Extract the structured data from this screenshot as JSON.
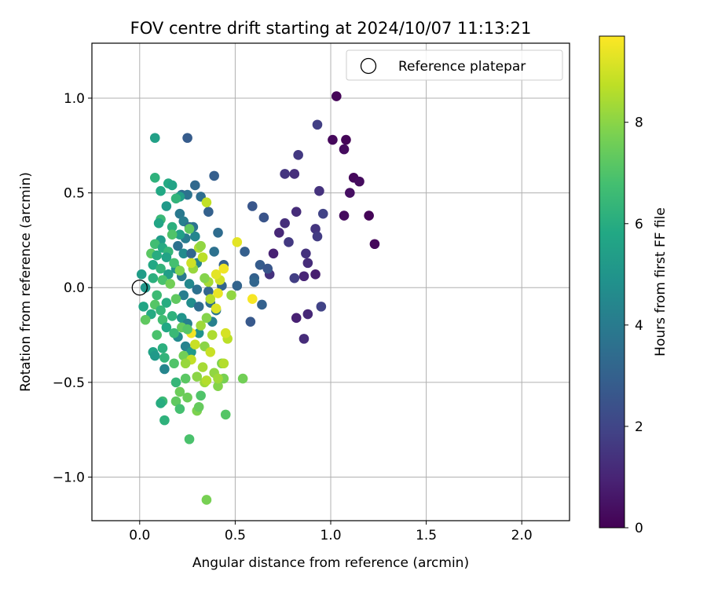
{
  "chart_data": {
    "type": "scatter",
    "title": "FOV centre drift starting at 2024/10/07 11:13:21",
    "xlabel": "Angular distance from reference (arcmin)",
    "ylabel": "Rotation from reference (arcmin)",
    "xlim": [
      -0.25,
      2.25
    ],
    "ylim": [
      -1.23,
      1.29
    ],
    "xticks": [
      0.0,
      0.5,
      1.0,
      1.5,
      2.0
    ],
    "xtick_labels": [
      "0.0",
      "0.5",
      "1.0",
      "1.5",
      "2.0"
    ],
    "yticks": [
      -1.0,
      -0.5,
      0.0,
      0.5,
      1.0
    ],
    "ytick_labels": [
      "−1.0",
      "−0.5",
      "0.0",
      "0.5",
      "1.0"
    ],
    "grid": true,
    "legend": {
      "position": "upper right",
      "entries": [
        "Reference platepar"
      ]
    },
    "reference": {
      "x": 0.0,
      "y": 0.0,
      "label": "Reference platepar"
    },
    "colorbar": {
      "label": "Hours from first FF file",
      "colormap": "viridis",
      "range": [
        0,
        9.7
      ],
      "ticks": [
        0,
        2,
        4,
        6,
        8
      ],
      "tick_labels": [
        "0",
        "2",
        "4",
        "6",
        "8"
      ]
    },
    "points": [
      {
        "x": 1.03,
        "y": 1.01,
        "h": 0.1
      },
      {
        "x": 1.01,
        "y": 0.78,
        "h": 0.2
      },
      {
        "x": 1.08,
        "y": 0.78,
        "h": 0.1
      },
      {
        "x": 1.07,
        "y": 0.73,
        "h": 0.3
      },
      {
        "x": 1.12,
        "y": 0.58,
        "h": 0.2
      },
      {
        "x": 1.15,
        "y": 0.56,
        "h": 0.3
      },
      {
        "x": 1.1,
        "y": 0.5,
        "h": 0.4
      },
      {
        "x": 1.07,
        "y": 0.38,
        "h": 0.3
      },
      {
        "x": 1.2,
        "y": 0.38,
        "h": 0.1
      },
      {
        "x": 1.23,
        "y": 0.23,
        "h": 0.2
      },
      {
        "x": 0.93,
        "y": 0.86,
        "h": 1.8
      },
      {
        "x": 0.83,
        "y": 0.7,
        "h": 1.6
      },
      {
        "x": 0.76,
        "y": 0.6,
        "h": 1.5
      },
      {
        "x": 0.81,
        "y": 0.6,
        "h": 1.3
      },
      {
        "x": 0.94,
        "y": 0.51,
        "h": 1.4
      },
      {
        "x": 0.96,
        "y": 0.39,
        "h": 1.9
      },
      {
        "x": 0.82,
        "y": 0.4,
        "h": 1.2
      },
      {
        "x": 0.73,
        "y": 0.29,
        "h": 1.1
      },
      {
        "x": 0.76,
        "y": 0.34,
        "h": 1.3
      },
      {
        "x": 0.78,
        "y": 0.24,
        "h": 1.6
      },
      {
        "x": 0.92,
        "y": 0.31,
        "h": 1.5
      },
      {
        "x": 0.93,
        "y": 0.27,
        "h": 1.7
      },
      {
        "x": 0.87,
        "y": 0.18,
        "h": 1.4
      },
      {
        "x": 0.88,
        "y": 0.13,
        "h": 1.2
      },
      {
        "x": 0.7,
        "y": 0.18,
        "h": 0.9
      },
      {
        "x": 0.68,
        "y": 0.07,
        "h": 1.4
      },
      {
        "x": 0.86,
        "y": 0.06,
        "h": 1.0
      },
      {
        "x": 0.92,
        "y": 0.07,
        "h": 0.8
      },
      {
        "x": 0.81,
        "y": 0.05,
        "h": 1.8
      },
      {
        "x": 0.82,
        "y": -0.16,
        "h": 0.9
      },
      {
        "x": 0.88,
        "y": -0.14,
        "h": 1.1
      },
      {
        "x": 0.95,
        "y": -0.1,
        "h": 1.9
      },
      {
        "x": 0.86,
        "y": -0.27,
        "h": 1.2
      },
      {
        "x": 0.59,
        "y": 0.43,
        "h": 2.6
      },
      {
        "x": 0.65,
        "y": 0.37,
        "h": 2.5
      },
      {
        "x": 0.55,
        "y": 0.19,
        "h": 2.9
      },
      {
        "x": 0.63,
        "y": 0.12,
        "h": 2.8
      },
      {
        "x": 0.67,
        "y": 0.1,
        "h": 2.6
      },
      {
        "x": 0.6,
        "y": 0.05,
        "h": 3.0
      },
      {
        "x": 0.6,
        "y": 0.03,
        "h": 3.2
      },
      {
        "x": 0.51,
        "y": 0.01,
        "h": 3.1
      },
      {
        "x": 0.64,
        "y": -0.09,
        "h": 3.0
      },
      {
        "x": 0.58,
        "y": -0.18,
        "h": 2.7
      },
      {
        "x": 0.25,
        "y": 0.79,
        "h": 2.8
      },
      {
        "x": 0.39,
        "y": 0.59,
        "h": 2.9
      },
      {
        "x": 0.29,
        "y": 0.54,
        "h": 3.3
      },
      {
        "x": 0.32,
        "y": 0.48,
        "h": 3.5
      },
      {
        "x": 0.36,
        "y": 0.4,
        "h": 3.0
      },
      {
        "x": 0.41,
        "y": 0.29,
        "h": 3.4
      },
      {
        "x": 0.39,
        "y": 0.19,
        "h": 3.6
      },
      {
        "x": 0.44,
        "y": 0.12,
        "h": 2.9
      },
      {
        "x": 0.43,
        "y": 0.01,
        "h": 3.1
      },
      {
        "x": 0.36,
        "y": -0.02,
        "h": 3.2
      },
      {
        "x": 0.37,
        "y": -0.08,
        "h": 3.5
      },
      {
        "x": 0.4,
        "y": -0.12,
        "h": 3.8
      },
      {
        "x": 0.38,
        "y": -0.18,
        "h": 4.2
      },
      {
        "x": 0.22,
        "y": 0.49,
        "h": 3.4
      },
      {
        "x": 0.25,
        "y": 0.49,
        "h": 3.7
      },
      {
        "x": 0.21,
        "y": 0.39,
        "h": 3.9
      },
      {
        "x": 0.23,
        "y": 0.35,
        "h": 4.1
      },
      {
        "x": 0.26,
        "y": 0.32,
        "h": 3.3
      },
      {
        "x": 0.28,
        "y": 0.32,
        "h": 3.7
      },
      {
        "x": 0.29,
        "y": 0.27,
        "h": 4.4
      },
      {
        "x": 0.24,
        "y": 0.26,
        "h": 4.0
      },
      {
        "x": 0.2,
        "y": 0.22,
        "h": 3.6
      },
      {
        "x": 0.23,
        "y": 0.18,
        "h": 4.6
      },
      {
        "x": 0.27,
        "y": 0.18,
        "h": 3.2
      },
      {
        "x": 0.3,
        "y": 0.13,
        "h": 4.3
      },
      {
        "x": 0.19,
        "y": 0.1,
        "h": 4.8
      },
      {
        "x": 0.22,
        "y": 0.06,
        "h": 3.9
      },
      {
        "x": 0.26,
        "y": 0.02,
        "h": 4.5
      },
      {
        "x": 0.3,
        "y": -0.01,
        "h": 3.6
      },
      {
        "x": 0.23,
        "y": -0.04,
        "h": 4.1
      },
      {
        "x": 0.27,
        "y": -0.08,
        "h": 4.7
      },
      {
        "x": 0.31,
        "y": -0.1,
        "h": 3.4
      },
      {
        "x": 0.22,
        "y": -0.16,
        "h": 5.0
      },
      {
        "x": 0.25,
        "y": -0.19,
        "h": 4.2
      },
      {
        "x": 0.31,
        "y": -0.24,
        "h": 4.9
      },
      {
        "x": 0.24,
        "y": -0.31,
        "h": 4.3
      },
      {
        "x": 0.27,
        "y": -0.34,
        "h": 5.2
      },
      {
        "x": 0.2,
        "y": -0.26,
        "h": 4.6
      },
      {
        "x": 0.13,
        "y": -0.43,
        "h": 4.4
      },
      {
        "x": 0.08,
        "y": 0.79,
        "h": 5.5
      },
      {
        "x": 0.08,
        "y": 0.58,
        "h": 6.2
      },
      {
        "x": 0.15,
        "y": 0.55,
        "h": 5.9
      },
      {
        "x": 0.17,
        "y": 0.54,
        "h": 5.6
      },
      {
        "x": 0.11,
        "y": 0.51,
        "h": 5.8
      },
      {
        "x": 0.21,
        "y": 0.48,
        "h": 5.4
      },
      {
        "x": 0.19,
        "y": 0.47,
        "h": 6.3
      },
      {
        "x": 0.14,
        "y": 0.43,
        "h": 5.2
      },
      {
        "x": 0.11,
        "y": 0.36,
        "h": 6.5
      },
      {
        "x": 0.1,
        "y": 0.34,
        "h": 5.7
      },
      {
        "x": 0.17,
        "y": 0.32,
        "h": 6.1
      },
      {
        "x": 0.21,
        "y": 0.28,
        "h": 5.5
      },
      {
        "x": 0.11,
        "y": 0.25,
        "h": 5.3
      },
      {
        "x": 0.08,
        "y": 0.23,
        "h": 6.7
      },
      {
        "x": 0.12,
        "y": 0.21,
        "h": 5.9
      },
      {
        "x": 0.15,
        "y": 0.19,
        "h": 6.4
      },
      {
        "x": 0.06,
        "y": 0.18,
        "h": 7.2
      },
      {
        "x": 0.09,
        "y": 0.17,
        "h": 6.0
      },
      {
        "x": 0.14,
        "y": 0.16,
        "h": 5.6
      },
      {
        "x": 0.18,
        "y": 0.13,
        "h": 6.8
      },
      {
        "x": 0.07,
        "y": 0.12,
        "h": 5.8
      },
      {
        "x": 0.11,
        "y": 0.1,
        "h": 6.3
      },
      {
        "x": 0.15,
        "y": 0.07,
        "h": 5.4
      },
      {
        "x": 0.07,
        "y": 0.05,
        "h": 6.1
      },
      {
        "x": 0.12,
        "y": 0.04,
        "h": 6.9
      },
      {
        "x": 0.01,
        "y": 0.07,
        "h": 5.3
      },
      {
        "x": 0.03,
        "y": 0.0,
        "h": 5.1
      },
      {
        "x": 0.02,
        "y": -0.1,
        "h": 5.7
      },
      {
        "x": 0.09,
        "y": -0.04,
        "h": 6.6
      },
      {
        "x": 0.14,
        "y": -0.08,
        "h": 6.0
      },
      {
        "x": 0.08,
        "y": -0.09,
        "h": 7.1
      },
      {
        "x": 0.11,
        "y": -0.12,
        "h": 6.4
      },
      {
        "x": 0.06,
        "y": -0.14,
        "h": 5.9
      },
      {
        "x": 0.03,
        "y": -0.17,
        "h": 7.3
      },
      {
        "x": 0.12,
        "y": -0.17,
        "h": 6.7
      },
      {
        "x": 0.17,
        "y": -0.15,
        "h": 6.2
      },
      {
        "x": 0.14,
        "y": -0.21,
        "h": 5.8
      },
      {
        "x": 0.09,
        "y": -0.25,
        "h": 6.9
      },
      {
        "x": 0.18,
        "y": -0.24,
        "h": 6.5
      },
      {
        "x": 0.22,
        "y": -0.21,
        "h": 7.4
      },
      {
        "x": 0.12,
        "y": -0.32,
        "h": 6.1
      },
      {
        "x": 0.07,
        "y": -0.34,
        "h": 5.6
      },
      {
        "x": 0.08,
        "y": -0.36,
        "h": 5.2
      },
      {
        "x": 0.13,
        "y": -0.37,
        "h": 6.3
      },
      {
        "x": 0.18,
        "y": -0.4,
        "h": 7.0
      },
      {
        "x": 0.23,
        "y": -0.36,
        "h": 7.6
      },
      {
        "x": 0.19,
        "y": -0.5,
        "h": 6.4
      },
      {
        "x": 0.24,
        "y": -0.48,
        "h": 7.2
      },
      {
        "x": 0.12,
        "y": -0.6,
        "h": 6.6
      },
      {
        "x": 0.11,
        "y": -0.61,
        "h": 6.0
      },
      {
        "x": 0.19,
        "y": -0.6,
        "h": 7.3
      },
      {
        "x": 0.21,
        "y": -0.64,
        "h": 6.8
      },
      {
        "x": 0.13,
        "y": -0.7,
        "h": 6.2
      },
      {
        "x": 0.26,
        "y": -0.8,
        "h": 6.9
      },
      {
        "x": 0.25,
        "y": -0.58,
        "h": 7.5
      },
      {
        "x": 0.3,
        "y": -0.65,
        "h": 7.8
      },
      {
        "x": 0.32,
        "y": -0.57,
        "h": 7.0
      },
      {
        "x": 0.31,
        "y": -0.63,
        "h": 7.4
      },
      {
        "x": 0.45,
        "y": -0.67,
        "h": 7.1
      },
      {
        "x": 0.35,
        "y": -1.12,
        "h": 7.7
      },
      {
        "x": 0.54,
        "y": -0.48,
        "h": 7.6
      },
      {
        "x": 0.41,
        "y": -0.52,
        "h": 7.9
      },
      {
        "x": 0.34,
        "y": -0.5,
        "h": 8.3
      },
      {
        "x": 0.35,
        "y": -0.49,
        "h": 8.6
      },
      {
        "x": 0.43,
        "y": -0.4,
        "h": 7.8
      },
      {
        "x": 0.39,
        "y": -0.45,
        "h": 8.1
      },
      {
        "x": 0.33,
        "y": -0.42,
        "h": 8.4
      },
      {
        "x": 0.27,
        "y": -0.38,
        "h": 8.8
      },
      {
        "x": 0.24,
        "y": -0.4,
        "h": 8.2
      },
      {
        "x": 0.29,
        "y": -0.3,
        "h": 8.9
      },
      {
        "x": 0.34,
        "y": -0.31,
        "h": 8.0
      },
      {
        "x": 0.38,
        "y": -0.25,
        "h": 8.5
      },
      {
        "x": 0.46,
        "y": -0.27,
        "h": 8.7
      },
      {
        "x": 0.45,
        "y": -0.24,
        "h": 9.1
      },
      {
        "x": 0.32,
        "y": -0.2,
        "h": 8.3
      },
      {
        "x": 0.35,
        "y": -0.16,
        "h": 7.9
      },
      {
        "x": 0.4,
        "y": -0.11,
        "h": 9.2
      },
      {
        "x": 0.37,
        "y": -0.06,
        "h": 8.6
      },
      {
        "x": 0.41,
        "y": -0.03,
        "h": 9.4
      },
      {
        "x": 0.48,
        "y": -0.04,
        "h": 8.1
      },
      {
        "x": 0.42,
        "y": 0.04,
        "h": 9.0
      },
      {
        "x": 0.36,
        "y": 0.03,
        "h": 8.4
      },
      {
        "x": 0.34,
        "y": 0.05,
        "h": 7.9
      },
      {
        "x": 0.4,
        "y": 0.07,
        "h": 9.3
      },
      {
        "x": 0.44,
        "y": 0.1,
        "h": 9.5
      },
      {
        "x": 0.28,
        "y": 0.1,
        "h": 8.2
      },
      {
        "x": 0.33,
        "y": 0.16,
        "h": 8.7
      },
      {
        "x": 0.27,
        "y": 0.13,
        "h": 9.0
      },
      {
        "x": 0.31,
        "y": 0.21,
        "h": 8.5
      },
      {
        "x": 0.32,
        "y": 0.22,
        "h": 8.1
      },
      {
        "x": 0.51,
        "y": 0.24,
        "h": 9.3
      },
      {
        "x": 0.35,
        "y": 0.45,
        "h": 8.8
      },
      {
        "x": 0.59,
        "y": -0.06,
        "h": 9.6
      },
      {
        "x": 0.27,
        "y": -0.24,
        "h": 9.5
      },
      {
        "x": 0.3,
        "y": -0.47,
        "h": 8.0
      },
      {
        "x": 0.44,
        "y": -0.48,
        "h": 7.7
      },
      {
        "x": 0.41,
        "y": -0.48,
        "h": 8.3
      },
      {
        "x": 0.44,
        "y": -0.4,
        "h": 8.6
      },
      {
        "x": 0.37,
        "y": -0.34,
        "h": 8.9
      },
      {
        "x": 0.21,
        "y": -0.55,
        "h": 7.5
      },
      {
        "x": 0.25,
        "y": -0.22,
        "h": 7.1
      },
      {
        "x": 0.19,
        "y": -0.06,
        "h": 7.3
      },
      {
        "x": 0.16,
        "y": 0.02,
        "h": 7.6
      },
      {
        "x": 0.21,
        "y": 0.09,
        "h": 7.8
      },
      {
        "x": 0.17,
        "y": 0.28,
        "h": 7.0
      },
      {
        "x": 0.26,
        "y": 0.31,
        "h": 7.3
      }
    ]
  }
}
